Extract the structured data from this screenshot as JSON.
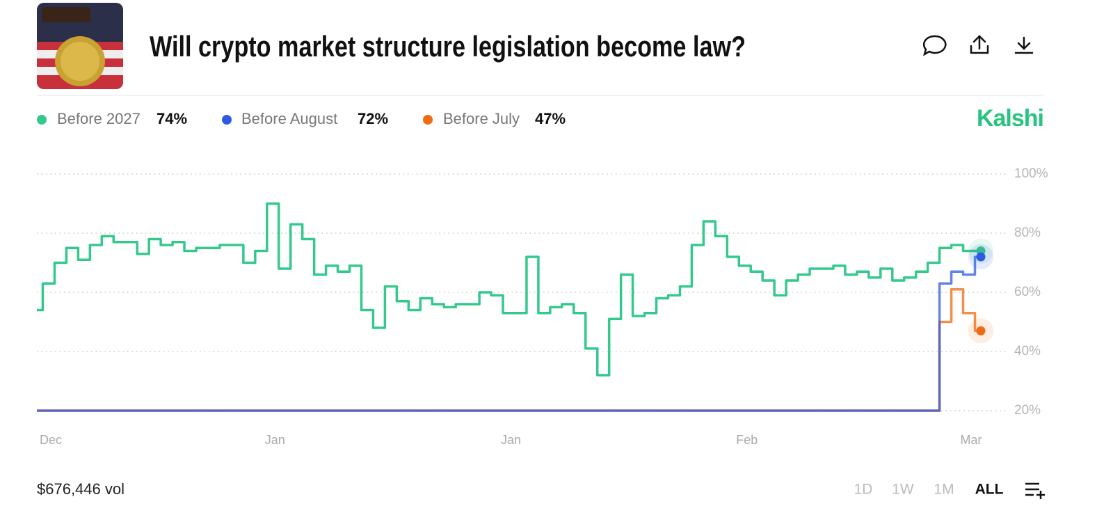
{
  "header": {
    "title": "Will crypto market structure legislation become law?",
    "brand": "Kalshi"
  },
  "legend": [
    {
      "name": "Before 2027",
      "value": "74%"
    },
    {
      "name": "Before August",
      "value": "72%"
    },
    {
      "name": "Before July",
      "value": "47%"
    }
  ],
  "chart_data": {
    "type": "line",
    "categories": [
      null,
      "Dec",
      null,
      null,
      null,
      null,
      null,
      null,
      null,
      null,
      null,
      null,
      null,
      null,
      null,
      null,
      null,
      null,
      null,
      null,
      "Jan",
      null,
      null,
      null,
      null,
      null,
      null,
      null,
      null,
      null,
      null,
      null,
      null,
      null,
      null,
      null,
      null,
      null,
      null,
      null,
      "Jan",
      null,
      null,
      null,
      null,
      null,
      null,
      null,
      null,
      null,
      null,
      null,
      null,
      null,
      null,
      null,
      null,
      null,
      null,
      null,
      "Feb",
      null,
      null,
      null,
      null,
      null,
      null,
      null,
      null,
      null,
      null,
      null,
      null,
      null,
      null,
      null,
      null,
      null,
      null,
      "Mar",
      null
    ],
    "series": [
      {
        "name": "Before 2027",
        "color": "#34c98c",
        "values": [
          54,
          63,
          70,
          75,
          71,
          76,
          79,
          77,
          77,
          73,
          78,
          76,
          77,
          74,
          75,
          75,
          76,
          76,
          70,
          74,
          90,
          68,
          83,
          78,
          66,
          69,
          67,
          69,
          54,
          48,
          62,
          57,
          54,
          58,
          56,
          55,
          56,
          56,
          60,
          59,
          53,
          53,
          72,
          53,
          55,
          56,
          53,
          41,
          32,
          51,
          66,
          52,
          53,
          58,
          59,
          62,
          76,
          84,
          79,
          72,
          69,
          67,
          64,
          59,
          64,
          66,
          68,
          68,
          69,
          66,
          67,
          65,
          68,
          64,
          65,
          67,
          70,
          75,
          76,
          74,
          74
        ]
      },
      {
        "name": "Before August",
        "color": "#2d5be3",
        "values": [
          20,
          20,
          20,
          20,
          20,
          20,
          20,
          20,
          20,
          20,
          20,
          20,
          20,
          20,
          20,
          20,
          20,
          20,
          20,
          20,
          20,
          20,
          20,
          20,
          20,
          20,
          20,
          20,
          20,
          20,
          20,
          20,
          20,
          20,
          20,
          20,
          20,
          20,
          20,
          20,
          20,
          20,
          20,
          20,
          20,
          20,
          20,
          20,
          20,
          20,
          20,
          20,
          20,
          20,
          20,
          20,
          20,
          20,
          20,
          20,
          20,
          20,
          20,
          20,
          20,
          20,
          20,
          20,
          20,
          20,
          20,
          20,
          20,
          20,
          20,
          20,
          20,
          63,
          67,
          66,
          72
        ]
      },
      {
        "name": "Before July",
        "color": "#f06a0f",
        "values": [
          20,
          20,
          20,
          20,
          20,
          20,
          20,
          20,
          20,
          20,
          20,
          20,
          20,
          20,
          20,
          20,
          20,
          20,
          20,
          20,
          20,
          20,
          20,
          20,
          20,
          20,
          20,
          20,
          20,
          20,
          20,
          20,
          20,
          20,
          20,
          20,
          20,
          20,
          20,
          20,
          20,
          20,
          20,
          20,
          20,
          20,
          20,
          20,
          20,
          20,
          20,
          20,
          20,
          20,
          20,
          20,
          20,
          20,
          20,
          20,
          20,
          20,
          20,
          20,
          20,
          20,
          20,
          20,
          20,
          20,
          20,
          20,
          20,
          20,
          20,
          20,
          20,
          50,
          61,
          53,
          47
        ]
      }
    ],
    "ylim": [
      20,
      100
    ],
    "yticks": [
      {
        "value": 20,
        "label": "20%"
      },
      {
        "value": 40,
        "label": "40%"
      },
      {
        "value": 60,
        "label": "60%"
      },
      {
        "value": 80,
        "label": "80%"
      },
      {
        "value": 100,
        "label": "100%"
      }
    ],
    "grid": true
  },
  "footer": {
    "volume": "$676,446 vol",
    "ranges": [
      "1D",
      "1W",
      "1M",
      "ALL"
    ],
    "active_range": "ALL"
  }
}
